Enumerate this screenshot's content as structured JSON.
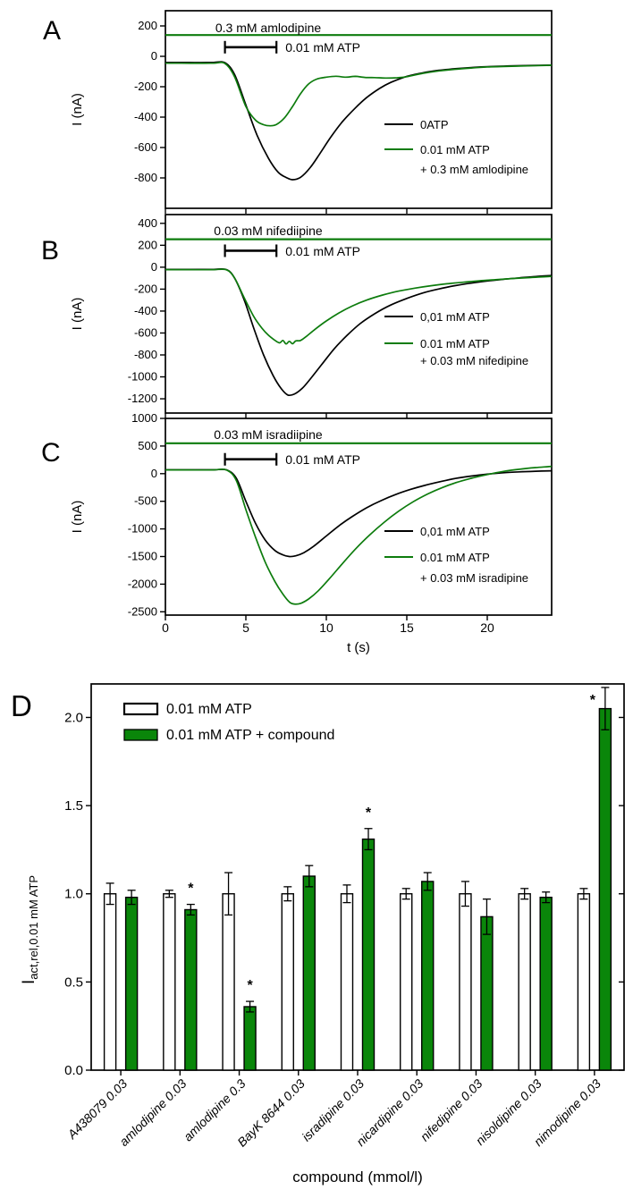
{
  "figure_kind": "multi-panel electrophysiology figure",
  "colors": {
    "background": "#ffffff",
    "black": "#000000",
    "trace_green": "#0d7c0d",
    "bar_green": "#0a860a"
  },
  "time_axis": {
    "label": "t (s)",
    "tick_values": [
      0,
      5,
      10,
      15,
      20
    ],
    "range_s": [
      0,
      24
    ]
  },
  "chart_data": [
    {
      "panel": "A",
      "type": "line",
      "ylabel": "I (nA)",
      "ylim": [
        -1000,
        300
      ],
      "yticks": [
        200,
        0,
        -200,
        -400,
        -600,
        -800
      ],
      "xlim": [
        0,
        24
      ],
      "compound_line": {
        "level_nA": 140,
        "label": "0.3 mM amlodipine"
      },
      "atp_application": {
        "from_s": 3.7,
        "to_s": 6.9,
        "level_nA": 60,
        "label": "0.01 mM ATP"
      },
      "legend": [
        {
          "color": "black",
          "lines": [
            "0ATP"
          ]
        },
        {
          "color": "green",
          "lines": [
            "0.01 mM ATP",
            "+ 0.3 mM amlodipine"
          ]
        }
      ],
      "series": [
        {
          "name": "0ATP",
          "color": "black",
          "points_t_nA": [
            [
              0,
              -40
            ],
            [
              1,
              -40
            ],
            [
              2,
              -41
            ],
            [
              3,
              -40
            ],
            [
              3.7,
              -42
            ],
            [
              4.3,
              -120
            ],
            [
              5,
              -320
            ],
            [
              5.7,
              -520
            ],
            [
              6.4,
              -670
            ],
            [
              7,
              -762
            ],
            [
              7.5,
              -797
            ],
            [
              7.9,
              -812
            ],
            [
              8.4,
              -796
            ],
            [
              9,
              -732
            ],
            [
              9.6,
              -640
            ],
            [
              10.3,
              -528
            ],
            [
              11,
              -430
            ],
            [
              11.8,
              -340
            ],
            [
              12.5,
              -272
            ],
            [
              13.3,
              -212
            ],
            [
              14,
              -172
            ],
            [
              15,
              -132
            ],
            [
              16,
              -108
            ],
            [
              17,
              -92
            ],
            [
              18,
              -82
            ],
            [
              19,
              -74
            ],
            [
              20,
              -68
            ],
            [
              22,
              -62
            ],
            [
              24,
              -58
            ]
          ]
        },
        {
          "name": "0.01 mM ATP + 0.3 mM amlodipine",
          "color": "green",
          "points_t_nA": [
            [
              0,
              -45
            ],
            [
              1,
              -45
            ],
            [
              2,
              -46
            ],
            [
              3,
              -45
            ],
            [
              3.7,
              -47
            ],
            [
              4.3,
              -135
            ],
            [
              5,
              -330
            ],
            [
              5.6,
              -420
            ],
            [
              6.1,
              -450
            ],
            [
              6.5,
              -457
            ],
            [
              6.9,
              -448
            ],
            [
              7.4,
              -405
            ],
            [
              7.9,
              -330
            ],
            [
              8.4,
              -245
            ],
            [
              8.9,
              -182
            ],
            [
              9.4,
              -150
            ],
            [
              10,
              -137
            ],
            [
              10.6,
              -131
            ],
            [
              11.2,
              -137
            ],
            [
              11.8,
              -132
            ],
            [
              12.4,
              -139
            ],
            [
              13,
              -140
            ],
            [
              13.7,
              -143
            ],
            [
              14.4,
              -141
            ],
            [
              15,
              -134
            ],
            [
              16,
              -112
            ],
            [
              17,
              -96
            ],
            [
              18,
              -85
            ],
            [
              19,
              -77
            ],
            [
              20,
              -70
            ],
            [
              22,
              -64
            ],
            [
              24,
              -59
            ]
          ]
        }
      ]
    },
    {
      "panel": "B",
      "type": "line",
      "ylabel": "I (nA)",
      "ylim": [
        -1330,
        480
      ],
      "yticks": [
        400,
        200,
        0,
        -200,
        -400,
        -600,
        -800,
        -1000,
        -1200
      ],
      "xlim": [
        0,
        24
      ],
      "compound_line": {
        "level_nA": 255,
        "label": "0.03 mM nifediipine"
      },
      "atp_application": {
        "from_s": 3.7,
        "to_s": 6.9,
        "level_nA": 150,
        "label": "0.01 mM ATP"
      },
      "legend": [
        {
          "color": "black",
          "lines": [
            "0,01 mM ATP"
          ]
        },
        {
          "color": "green",
          "lines": [
            "0.01 mM ATP",
            "+ 0.03 mM nifedipine"
          ]
        }
      ],
      "series": [
        {
          "name": "0,01 mM ATP",
          "color": "black",
          "points_t_nA": [
            [
              0,
              -20
            ],
            [
              1,
              -20
            ],
            [
              2,
              -21
            ],
            [
              3,
              -20
            ],
            [
              3.8,
              -22
            ],
            [
              4.3,
              -100
            ],
            [
              4.9,
              -300
            ],
            [
              5.5,
              -560
            ],
            [
              6.1,
              -800
            ],
            [
              6.7,
              -990
            ],
            [
              7.2,
              -1108
            ],
            [
              7.6,
              -1165
            ],
            [
              8,
              -1158
            ],
            [
              8.5,
              -1105
            ],
            [
              9,
              -1020
            ],
            [
              9.7,
              -890
            ],
            [
              10.5,
              -742
            ],
            [
              11.3,
              -620
            ],
            [
              12.1,
              -515
            ],
            [
              13,
              -425
            ],
            [
              14,
              -345
            ],
            [
              15,
              -285
            ],
            [
              16,
              -235
            ],
            [
              17,
              -198
            ],
            [
              18,
              -168
            ],
            [
              19,
              -145
            ],
            [
              20,
              -126
            ],
            [
              21,
              -110
            ],
            [
              22,
              -97
            ],
            [
              23,
              -85
            ],
            [
              24,
              -75
            ]
          ]
        },
        {
          "name": "0.01 mM ATP + 0.03 mM nifedipine",
          "color": "green",
          "points_t_nA": [
            [
              0,
              -22
            ],
            [
              1,
              -22
            ],
            [
              2,
              -23
            ],
            [
              3,
              -22
            ],
            [
              3.8,
              -24
            ],
            [
              4.3,
              -100
            ],
            [
              4.9,
              -280
            ],
            [
              5.5,
              -452
            ],
            [
              6,
              -556
            ],
            [
              6.4,
              -620
            ],
            [
              6.8,
              -666
            ],
            [
              7.1,
              -690
            ],
            [
              7.3,
              -668
            ],
            [
              7.5,
              -700
            ],
            [
              7.7,
              -676
            ],
            [
              7.9,
              -698
            ],
            [
              8.1,
              -672
            ],
            [
              8.4,
              -668
            ],
            [
              8.8,
              -626
            ],
            [
              9.3,
              -566
            ],
            [
              10,
              -490
            ],
            [
              10.8,
              -416
            ],
            [
              11.6,
              -355
            ],
            [
              12.5,
              -300
            ],
            [
              13.5,
              -254
            ],
            [
              14.5,
              -218
            ],
            [
              15.5,
              -191
            ],
            [
              16.5,
              -169
            ],
            [
              17.5,
              -151
            ],
            [
              18.5,
              -137
            ],
            [
              19.5,
              -124
            ],
            [
              20.5,
              -114
            ],
            [
              21.5,
              -104
            ],
            [
              22.5,
              -96
            ],
            [
              23.2,
              -90
            ],
            [
              24,
              -84
            ]
          ]
        }
      ]
    },
    {
      "panel": "C",
      "type": "line",
      "ylabel": "I (nA)",
      "ylim": [
        -2560,
        1000
      ],
      "yticks": [
        1000,
        500,
        0,
        -500,
        -1000,
        -1500,
        -2000,
        -2500
      ],
      "xlim": [
        0,
        24
      ],
      "compound_line": {
        "level_nA": 550,
        "label": "0.03 mM isradiipine"
      },
      "atp_application": {
        "from_s": 3.7,
        "to_s": 6.9,
        "level_nA": 260,
        "label": "0.01 mM ATP"
      },
      "legend": [
        {
          "color": "black",
          "lines": [
            "0,01 mM ATP"
          ]
        },
        {
          "color": "green",
          "lines": [
            "0.01 mM ATP",
            "+ 0.03 mM isradipine"
          ]
        }
      ],
      "series": [
        {
          "name": "0,01 mM ATP",
          "color": "black",
          "points_t_nA": [
            [
              0,
              70
            ],
            [
              1,
              70
            ],
            [
              2,
              69
            ],
            [
              3,
              70
            ],
            [
              3.8,
              68
            ],
            [
              4.4,
              -80
            ],
            [
              5,
              -500
            ],
            [
              5.6,
              -900
            ],
            [
              6.2,
              -1200
            ],
            [
              6.8,
              -1390
            ],
            [
              7.3,
              -1470
            ],
            [
              7.7,
              -1500
            ],
            [
              8.1,
              -1487
            ],
            [
              8.6,
              -1430
            ],
            [
              9.2,
              -1318
            ],
            [
              10,
              -1128
            ],
            [
              10.8,
              -940
            ],
            [
              11.6,
              -778
            ],
            [
              12.5,
              -618
            ],
            [
              13.4,
              -488
            ],
            [
              14.3,
              -378
            ],
            [
              15.2,
              -288
            ],
            [
              16.1,
              -214
            ],
            [
              17,
              -150
            ],
            [
              18,
              -88
            ],
            [
              19,
              -44
            ],
            [
              20,
              -10
            ],
            [
              21,
              16
            ],
            [
              22,
              32
            ],
            [
              23,
              44
            ],
            [
              24,
              52
            ]
          ]
        },
        {
          "name": "0.01 mM ATP + 0.03 mM isradipine",
          "color": "green",
          "points_t_nA": [
            [
              0,
              68
            ],
            [
              1,
              68
            ],
            [
              2,
              67
            ],
            [
              3,
              68
            ],
            [
              3.8,
              66
            ],
            [
              4.4,
              -120
            ],
            [
              5,
              -650
            ],
            [
              5.6,
              -1150
            ],
            [
              6.2,
              -1600
            ],
            [
              6.8,
              -1950
            ],
            [
              7.3,
              -2180
            ],
            [
              7.7,
              -2322
            ],
            [
              8,
              -2360
            ],
            [
              8.4,
              -2348
            ],
            [
              8.9,
              -2268
            ],
            [
              9.5,
              -2120
            ],
            [
              10.2,
              -1898
            ],
            [
              11,
              -1628
            ],
            [
              11.8,
              -1368
            ],
            [
              12.7,
              -1108
            ],
            [
              13.6,
              -878
            ],
            [
              14.5,
              -678
            ],
            [
              15.4,
              -508
            ],
            [
              16.3,
              -368
            ],
            [
              17.2,
              -252
            ],
            [
              18.1,
              -158
            ],
            [
              19,
              -84
            ],
            [
              20,
              -16
            ],
            [
              21,
              40
            ],
            [
              22,
              80
            ],
            [
              23,
              110
            ],
            [
              24,
              132
            ]
          ]
        }
      ]
    },
    {
      "panel": "D",
      "type": "bar",
      "ylabel_main": "I",
      "ylabel_sub": "act,rel,0.01 mM ATP",
      "xlabel": "compound (mmol/l)",
      "ylim": [
        0,
        2.19
      ],
      "ytick_values": [
        0,
        0.5,
        1,
        1.5,
        2
      ],
      "ytick_labels": [
        "0.0",
        "0.5",
        "1.0",
        "1.5",
        "2.0"
      ],
      "significance_marker": "*",
      "legend": [
        {
          "label": "0.01 mM ATP",
          "fill": "white"
        },
        {
          "label": "0.01 mM ATP + compound",
          "fill": "green"
        }
      ],
      "categories": [
        "A438079 0.03",
        "amlodipine 0.03",
        "amlodipine 0.3",
        "BayK 8644 0.03",
        "isradipine 0.03",
        "nicardipine 0.03",
        "nifedipine 0.03",
        "nisoldipine 0.03",
        "nimodipine 0.03"
      ],
      "series": [
        {
          "name": "0.01 mM ATP",
          "fill": "white",
          "values": [
            1.0,
            1.0,
            1.0,
            1.0,
            1.0,
            1.0,
            1.0,
            1.0,
            1.0
          ],
          "errors": [
            0.06,
            0.02,
            0.12,
            0.04,
            0.05,
            0.03,
            0.07,
            0.03,
            0.03
          ],
          "significant": [
            false,
            false,
            false,
            false,
            false,
            false,
            false,
            false,
            false
          ]
        },
        {
          "name": "0.01 mM ATP + compound",
          "fill": "green",
          "values": [
            0.98,
            0.91,
            0.36,
            1.1,
            1.31,
            1.07,
            0.87,
            0.98,
            2.05
          ],
          "errors": [
            0.04,
            0.03,
            0.03,
            0.06,
            0.06,
            0.05,
            0.1,
            0.03,
            0.12
          ],
          "significant": [
            false,
            true,
            true,
            false,
            true,
            false,
            false,
            false,
            true
          ]
        }
      ]
    }
  ]
}
